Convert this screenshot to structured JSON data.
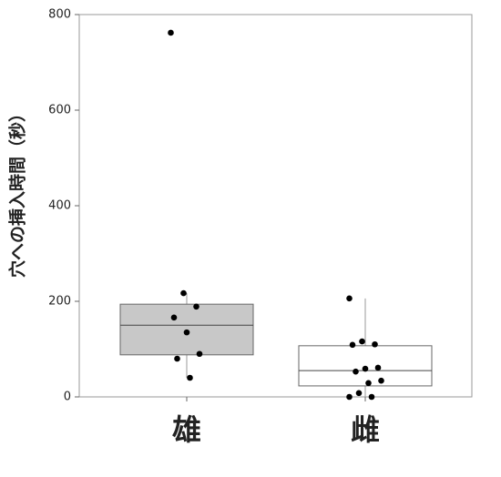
{
  "chart_data": {
    "type": "box",
    "y_label": "穴への挿入時間（秒）",
    "categories": [
      "雄",
      "雌"
    ],
    "ylim": [
      0,
      800
    ],
    "yticks": [
      0,
      200,
      400,
      600,
      800
    ],
    "boxes": [
      {
        "color": "#c8c8c8",
        "whisker_low": 40,
        "q1": 88,
        "median": 150,
        "q3": 194,
        "whisker_high": 217,
        "points": [
          762,
          217,
          189,
          166,
          135,
          90,
          80,
          40
        ]
      },
      {
        "color": "#ffffff",
        "whisker_low": 0,
        "q1": 23,
        "median": 55,
        "q3": 107,
        "whisker_high": 206,
        "points": [
          206,
          116,
          110,
          109,
          59,
          61,
          53,
          29,
          34,
          8,
          0,
          0
        ]
      }
    ]
  }
}
